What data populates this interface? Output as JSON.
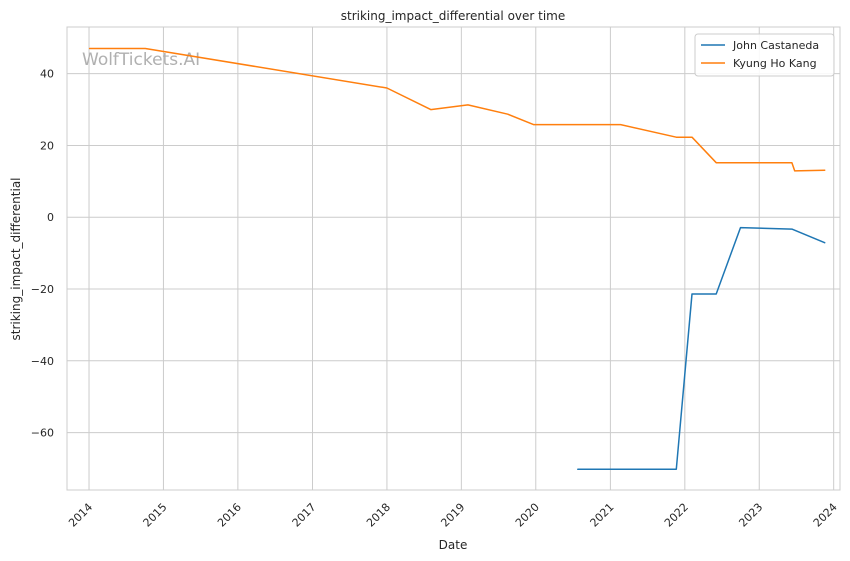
{
  "chart_data": {
    "type": "line",
    "title": "striking_impact_differential over time",
    "xlabel": "Date",
    "ylabel": "striking_impact_differential",
    "watermark": "WolfTickets.AI",
    "x_ticks": [
      "2014",
      "2015",
      "2016",
      "2017",
      "2018",
      "2019",
      "2020",
      "2021",
      "2022",
      "2023",
      "2024"
    ],
    "y_ticks": [
      40,
      20,
      0,
      -20,
      -40,
      -60
    ],
    "y_tick_labels": [
      "40",
      "20",
      "0",
      "−20",
      "−40",
      "−60"
    ],
    "xlim": [
      "2013-09-15",
      "2024-02-01"
    ],
    "ylim": [
      -76,
      53
    ],
    "grid": true,
    "legend_position": "top-right",
    "series": [
      {
        "name": "John Castaneda",
        "color": "#1f77b4",
        "points": [
          {
            "x": "2020-07-25",
            "y": -70.2
          },
          {
            "x": "2021-11-20",
            "y": -70.2
          },
          {
            "x": "2022-02-05",
            "y": -21.4
          },
          {
            "x": "2022-06-04",
            "y": -21.4
          },
          {
            "x": "2022-10-01",
            "y": -2.9
          },
          {
            "x": "2023-06-10",
            "y": -3.3
          },
          {
            "x": "2023-11-18",
            "y": -7.1
          }
        ]
      },
      {
        "name": "Kyung Ho Kang",
        "color": "#ff7f0e",
        "points": [
          {
            "x": "2014-01-04",
            "y": 47.0
          },
          {
            "x": "2014-10-04",
            "y": 47.0
          },
          {
            "x": "2018-01-01",
            "y": 36.0
          },
          {
            "x": "2018-08-04",
            "y": 30.0
          },
          {
            "x": "2019-02-02",
            "y": 31.3
          },
          {
            "x": "2019-08-17",
            "y": 28.7
          },
          {
            "x": "2019-12-21",
            "y": 25.8
          },
          {
            "x": "2021-02-20",
            "y": 25.8
          },
          {
            "x": "2021-11-20",
            "y": 22.3
          },
          {
            "x": "2022-02-05",
            "y": 22.3
          },
          {
            "x": "2022-06-04",
            "y": 15.2
          },
          {
            "x": "2023-06-10",
            "y": 15.2
          },
          {
            "x": "2023-06-24",
            "y": 12.9
          },
          {
            "x": "2023-11-18",
            "y": 13.1
          }
        ]
      }
    ]
  }
}
